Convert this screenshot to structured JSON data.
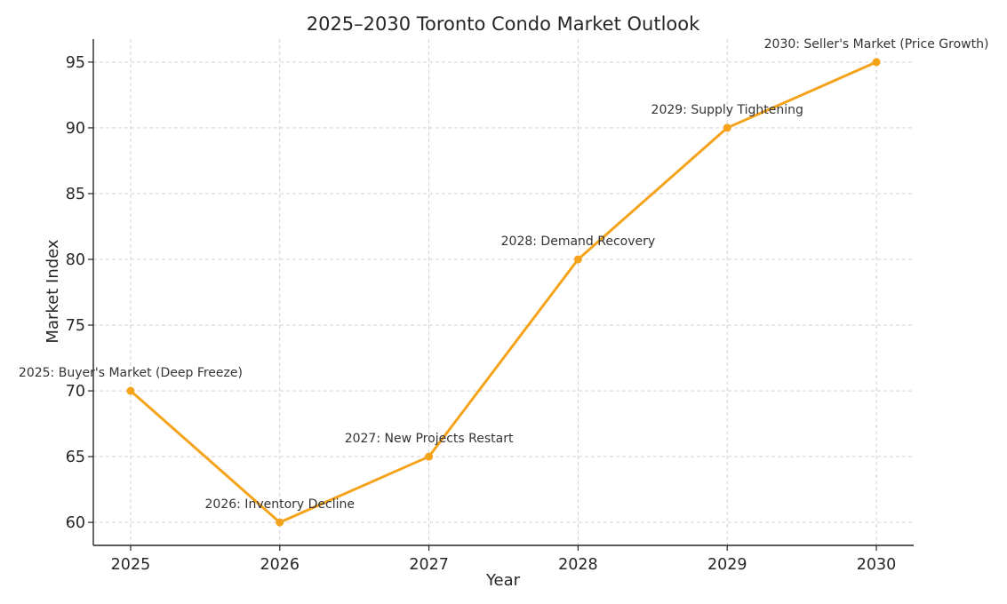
{
  "chart_data": {
    "type": "line",
    "title": "2025–2030 Toronto Condo Market Outlook",
    "xlabel": "Year",
    "ylabel": "Market Index",
    "x": [
      2025,
      2026,
      2027,
      2028,
      2029,
      2030
    ],
    "series": [
      {
        "values": [
          70,
          60,
          65,
          80,
          90,
          95
        ],
        "color": "#f5a31a"
      }
    ],
    "annotations": [
      {
        "x": 2025,
        "y": 70,
        "text": "2025: Buyer's Market (Deep Freeze)"
      },
      {
        "x": 2026,
        "y": 60,
        "text": "2026: Inventory Decline"
      },
      {
        "x": 2027,
        "y": 65,
        "text": "2027: New Projects Restart"
      },
      {
        "x": 2028,
        "y": 80,
        "text": "2028: Demand Recovery"
      },
      {
        "x": 2029,
        "y": 90,
        "text": "2029: Supply Tightening"
      },
      {
        "x": 2030,
        "y": 95,
        "text": "2030: Seller's Market (Price Growth)"
      }
    ],
    "xticks": [
      2025,
      2026,
      2027,
      2028,
      2029,
      2030
    ],
    "yticks": [
      60,
      65,
      70,
      75,
      80,
      85,
      90,
      95
    ],
    "xlim": [
      2024.75,
      2030.25
    ],
    "ylim": [
      58.25,
      96.75
    ],
    "grid": true,
    "grid_style": "dashed",
    "spines": "left-bottom"
  }
}
